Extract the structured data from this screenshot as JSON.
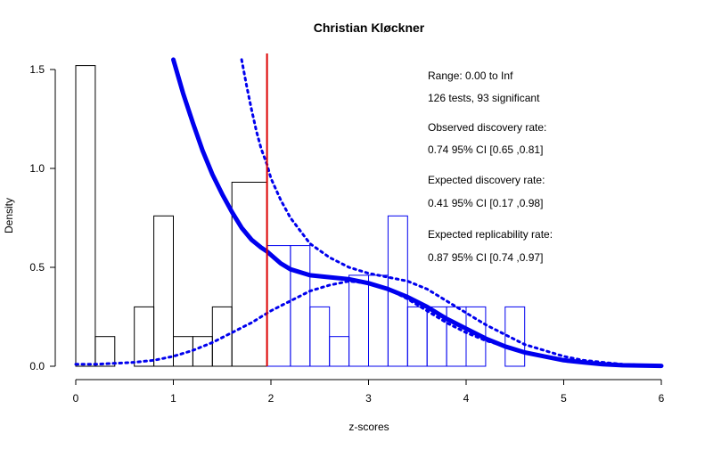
{
  "chart_data": {
    "type": "histogram",
    "title": "Christian Kløckner",
    "xlabel": "z-scores",
    "ylabel": "Density",
    "xlim": [
      0,
      6
    ],
    "ylim": [
      0,
      1.5
    ],
    "x_ticks": [
      0,
      1,
      2,
      3,
      4,
      5,
      6
    ],
    "y_ticks": [
      0.0,
      0.5,
      1.0,
      1.5
    ],
    "y_tick_labels": [
      "0.0",
      "0.5",
      "1.0",
      "1.5"
    ],
    "significance_line_x": 1.96,
    "bin_width": 0.2,
    "histogram_bins": [
      {
        "x0": 0.0,
        "x1": 0.2,
        "density": 1.52,
        "significant": false
      },
      {
        "x0": 0.2,
        "x1": 0.4,
        "density": 0.15,
        "significant": false
      },
      {
        "x0": 0.6,
        "x1": 0.8,
        "density": 0.3,
        "significant": false
      },
      {
        "x0": 0.8,
        "x1": 1.0,
        "density": 0.76,
        "significant": false
      },
      {
        "x0": 1.0,
        "x1": 1.2,
        "density": 0.15,
        "significant": false
      },
      {
        "x0": 1.2,
        "x1": 1.4,
        "density": 0.15,
        "significant": false
      },
      {
        "x0": 1.4,
        "x1": 1.6,
        "density": 0.3,
        "significant": false
      },
      {
        "x0": 1.6,
        "x1": 1.96,
        "density": 0.93,
        "significant": false
      },
      {
        "x0": 1.96,
        "x1": 2.2,
        "density": 0.61,
        "significant": true
      },
      {
        "x0": 2.2,
        "x1": 2.4,
        "density": 0.61,
        "significant": true
      },
      {
        "x0": 2.4,
        "x1": 2.6,
        "density": 0.3,
        "significant": true
      },
      {
        "x0": 2.6,
        "x1": 2.8,
        "density": 0.15,
        "significant": true
      },
      {
        "x0": 2.8,
        "x1": 3.0,
        "density": 0.46,
        "significant": true
      },
      {
        "x0": 3.0,
        "x1": 3.2,
        "density": 0.46,
        "significant": true
      },
      {
        "x0": 3.2,
        "x1": 3.4,
        "density": 0.76,
        "significant": true
      },
      {
        "x0": 3.4,
        "x1": 3.6,
        "density": 0.3,
        "significant": true
      },
      {
        "x0": 3.6,
        "x1": 3.8,
        "density": 0.3,
        "significant": true
      },
      {
        "x0": 3.8,
        "x1": 4.0,
        "density": 0.3,
        "significant": true
      },
      {
        "x0": 4.0,
        "x1": 4.2,
        "density": 0.3,
        "significant": true
      },
      {
        "x0": 4.4,
        "x1": 4.6,
        "density": 0.3,
        "significant": true
      }
    ],
    "series": [
      {
        "style": "solid-thick",
        "color": "#0000ee",
        "x": [
          1.0,
          1.1,
          1.2,
          1.3,
          1.4,
          1.5,
          1.6,
          1.7,
          1.8,
          1.9,
          1.96,
          2.1,
          2.2,
          2.4,
          2.6,
          2.8,
          3.0,
          3.2,
          3.4,
          3.6,
          3.8,
          4.0,
          4.2,
          4.4,
          4.6,
          4.8,
          5.0,
          5.2,
          5.4,
          5.6,
          5.8,
          6.0
        ],
        "y": [
          1.55,
          1.38,
          1.23,
          1.09,
          0.97,
          0.87,
          0.78,
          0.7,
          0.64,
          0.6,
          0.58,
          0.52,
          0.49,
          0.46,
          0.45,
          0.44,
          0.42,
          0.39,
          0.35,
          0.3,
          0.24,
          0.19,
          0.14,
          0.1,
          0.07,
          0.05,
          0.03,
          0.02,
          0.01,
          0.005,
          0.003,
          0.002
        ]
      },
      {
        "style": "dotted",
        "color": "#0000ee",
        "x": [
          1.7,
          1.75,
          1.8,
          1.85,
          1.9,
          1.96,
          2.0,
          2.1,
          2.2,
          2.4,
          2.6,
          2.8,
          3.0,
          3.2,
          3.4,
          3.6,
          3.8,
          4.0,
          4.2,
          4.4,
          4.6,
          4.8,
          5.0,
          5.2,
          5.4,
          5.6,
          5.8,
          6.0
        ],
        "y": [
          1.55,
          1.42,
          1.3,
          1.19,
          1.1,
          1.02,
          0.95,
          0.84,
          0.75,
          0.62,
          0.55,
          0.5,
          0.47,
          0.45,
          0.43,
          0.39,
          0.33,
          0.27,
          0.21,
          0.16,
          0.11,
          0.08,
          0.05,
          0.03,
          0.02,
          0.01,
          0.006,
          0.003
        ]
      },
      {
        "style": "dotted",
        "color": "#0000ee",
        "x": [
          0.0,
          0.2,
          0.4,
          0.6,
          0.8,
          1.0,
          1.2,
          1.4,
          1.6,
          1.8,
          2.0,
          2.2,
          2.4,
          2.6,
          2.8,
          3.0,
          3.2,
          3.4,
          3.6,
          3.8,
          4.0,
          4.2,
          4.4,
          4.6,
          4.8,
          5.0,
          5.2,
          5.4,
          5.6,
          5.8,
          6.0
        ],
        "y": [
          0.01,
          0.01,
          0.015,
          0.02,
          0.03,
          0.05,
          0.08,
          0.12,
          0.17,
          0.22,
          0.28,
          0.33,
          0.38,
          0.41,
          0.43,
          0.42,
          0.39,
          0.34,
          0.28,
          0.22,
          0.17,
          0.13,
          0.1,
          0.07,
          0.05,
          0.03,
          0.02,
          0.01,
          0.006,
          0.003,
          0.001
        ]
      }
    ],
    "annotations": [
      "Range: 0.00 to Inf",
      "126 tests, 93 significant",
      "Observed discovery rate:",
      "0.74  95% CI [0.65 ,0.81]",
      "Expected discovery rate:",
      "0.41  95% CI [0.17 ,0.98]",
      "Expected replicability rate:",
      "0.87  95% CI [0.74 ,0.97]"
    ],
    "colors": {
      "nonsignificant_bars": "#000000",
      "significant_bars": "#0000ee",
      "curves": "#0000ee",
      "significance_line": "#dd0000"
    }
  }
}
